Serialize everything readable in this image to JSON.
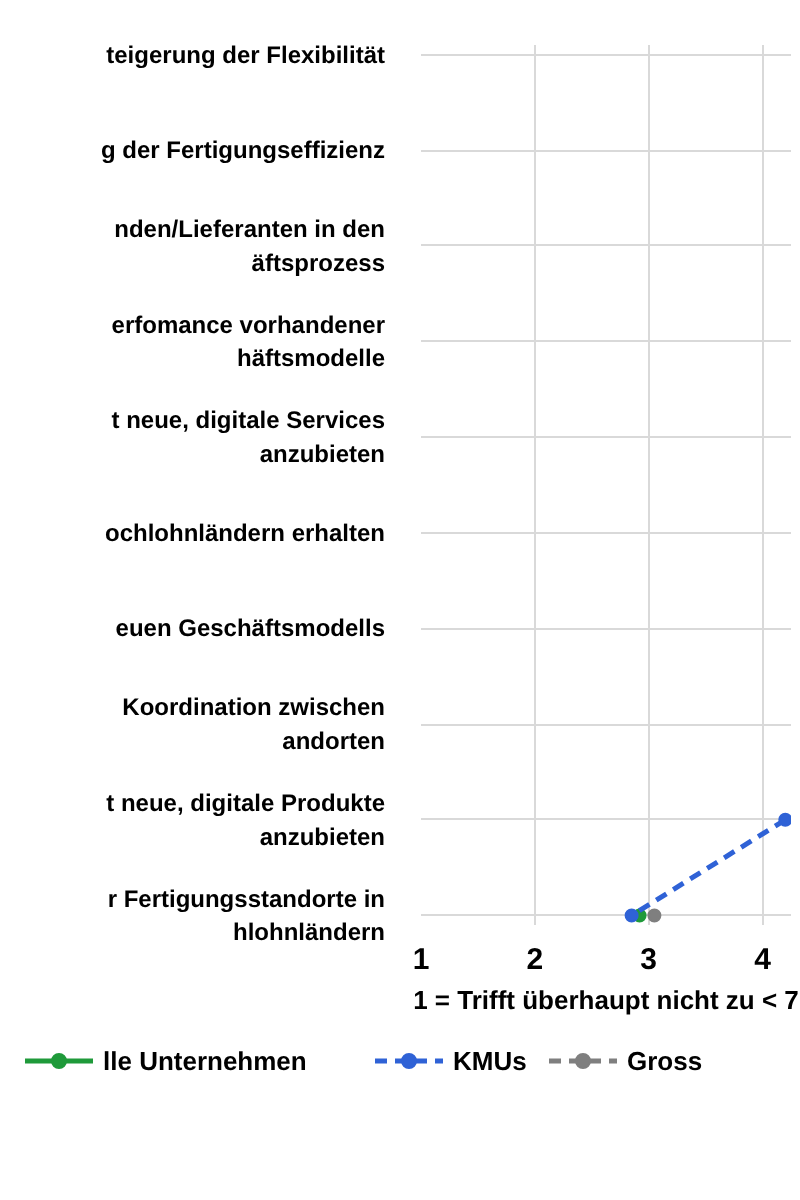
{
  "chart_data": {
    "type": "line",
    "orientation": "horizontal",
    "xlabel": "1 = Trifft überhaupt nicht zu < 7",
    "categories": [
      "teigerung der Flexibilität",
      "g der Fertigungseffizienz",
      "nden/Lieferanten in den\näftsprozess",
      "erfomance vorhandener\nhäftsmodelle",
      "t neue, digitale Services\nanzubieten",
      "ochlohnländern erhalten",
      "euen Geschäftsmodells",
      "Koordination zwischen\nandorten",
      "t neue, digitale Produkte\nanzubieten",
      "r Fertigungsstandorte in\nhlohnländern"
    ],
    "xlim": [
      1,
      4.25
    ],
    "xticks": [
      1,
      2,
      3,
      4
    ],
    "series": [
      {
        "name": "lle Unternehmen",
        "color": "#1f9a3a",
        "line_style": "solid",
        "values": [
          null,
          null,
          null,
          null,
          null,
          null,
          null,
          null,
          null,
          2.92
        ]
      },
      {
        "name": "KMUs",
        "color": "#2f62d6",
        "line_style": "dashed",
        "values": [
          null,
          null,
          null,
          null,
          null,
          null,
          null,
          null,
          4.2,
          2.85
        ]
      },
      {
        "name": "Gross",
        "color": "#7f7f7f",
        "line_style": "dashed",
        "values": [
          null,
          null,
          null,
          null,
          null,
          null,
          null,
          null,
          null,
          3.05
        ]
      }
    ],
    "marker": "circle",
    "grid": true,
    "legend": "bottom"
  }
}
